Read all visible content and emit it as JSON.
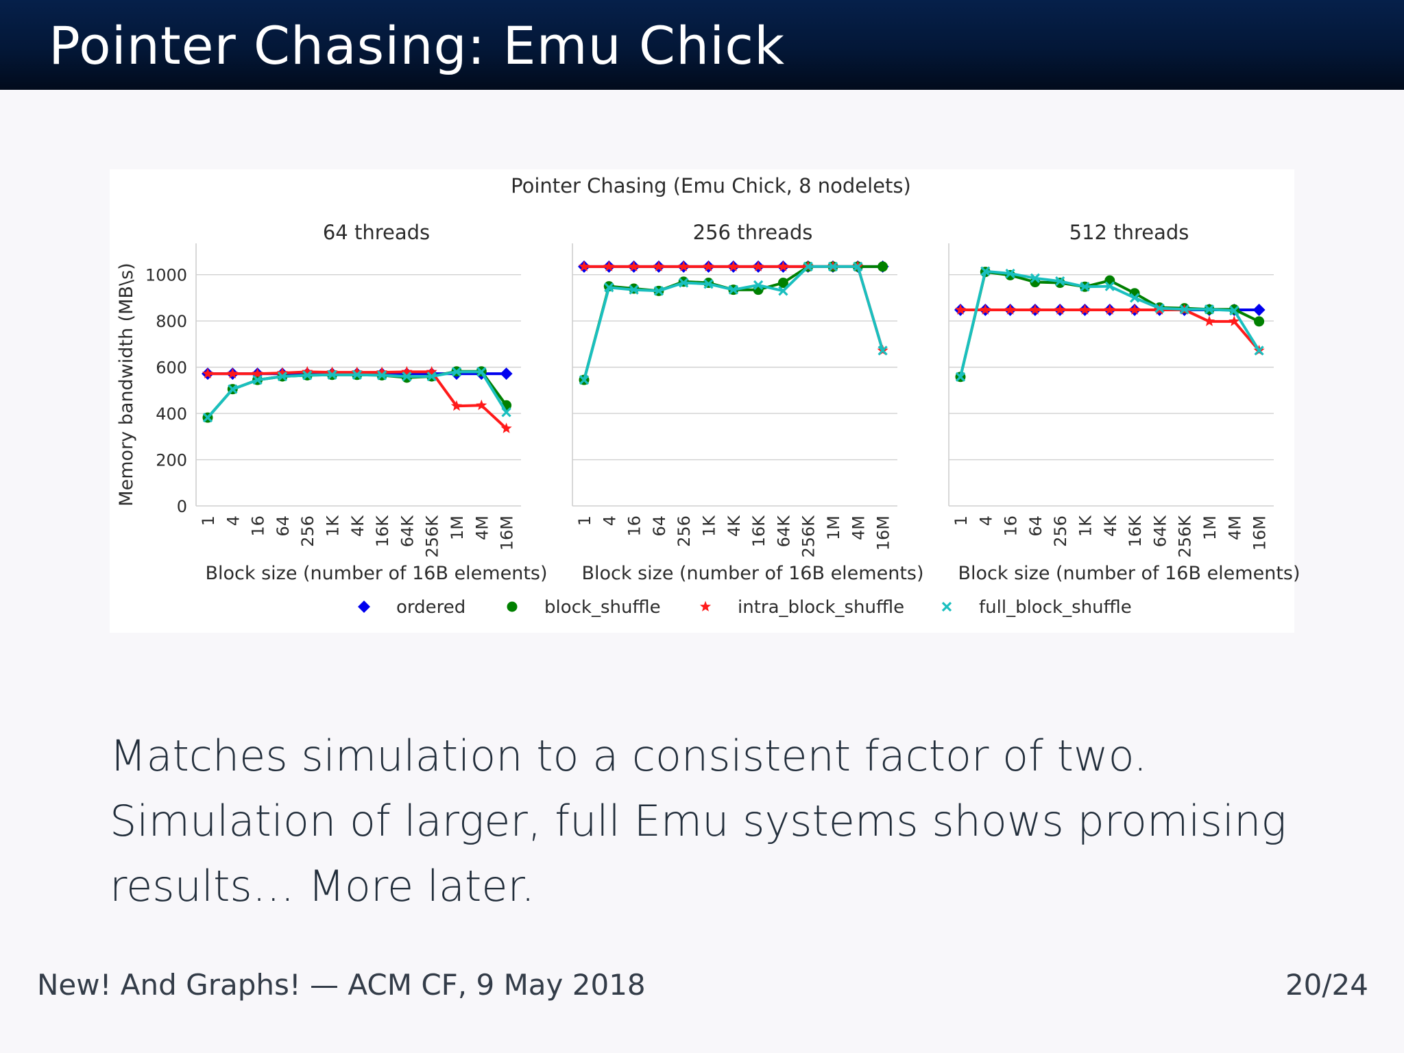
{
  "slide": {
    "title": "Pointer Chasing: Emu Chick",
    "body_lines": [
      "Matches simulation to a consistent factor of two.",
      "Simulation of larger, full Emu systems shows promising",
      "results… More later."
    ],
    "footer_left": "New! And Graphs! — ACM CF, 9 May 2018",
    "footer_right": "20/24"
  },
  "figure": {
    "suptitle": "Pointer Chasing (Emu Chick, 8 nodelets)",
    "ylabel": "Memory bandwidth (MB\\s)",
    "xlabel": "Block size (number of 16B elements)",
    "legend": [
      "ordered",
      "block_shuffle",
      "intra_block_shuffle",
      "full_block_shuffle"
    ],
    "colors": {
      "ordered": "#0000ee",
      "block_shuffle": "#008000",
      "intra_block_shuffle": "#ff1a1a",
      "full_block_shuffle": "#1abfbf",
      "grid": "#d0d0d0",
      "axis": "#cfcfcf"
    },
    "markers": {
      "ordered": "diamond",
      "block_shuffle": "circle",
      "intra_block_shuffle": "star",
      "full_block_shuffle": "x"
    }
  },
  "chart_data": [
    {
      "type": "line",
      "title": "64 threads",
      "xlabel": "Block size (number of 16B elements)",
      "ylabel": "Memory bandwidth (MB\\s)",
      "categories": [
        "1",
        "4",
        "16",
        "64",
        "256",
        "1K",
        "4K",
        "16K",
        "64K",
        "256K",
        "1M",
        "4M",
        "16M"
      ],
      "ylim": [
        0,
        1100
      ],
      "yticks": [
        0,
        200,
        400,
        600,
        800,
        1000
      ],
      "grid": true,
      "series": [
        {
          "name": "ordered",
          "values": [
            572,
            572,
            572,
            572,
            572,
            572,
            572,
            572,
            572,
            572,
            572,
            572,
            572
          ]
        },
        {
          "name": "block_shuffle",
          "values": [
            382,
            505,
            545,
            560,
            565,
            567,
            567,
            565,
            555,
            560,
            582,
            582,
            435
          ]
        },
        {
          "name": "intra_block_shuffle",
          "values": [
            572,
            572,
            572,
            575,
            580,
            578,
            578,
            578,
            580,
            580,
            432,
            435,
            335
          ]
        },
        {
          "name": "full_block_shuffle",
          "values": [
            382,
            505,
            545,
            560,
            565,
            567,
            567,
            565,
            560,
            560,
            580,
            580,
            405
          ]
        }
      ]
    },
    {
      "type": "line",
      "title": "256 threads",
      "xlabel": "Block size (number of 16B elements)",
      "ylabel": "",
      "categories": [
        "1",
        "4",
        "16",
        "64",
        "256",
        "1K",
        "4K",
        "16K",
        "64K",
        "256K",
        "1M",
        "4M",
        "16M"
      ],
      "ylim": [
        0,
        1100
      ],
      "yticks": [
        0,
        200,
        400,
        600,
        800,
        1000
      ],
      "grid": true,
      "series": [
        {
          "name": "ordered",
          "values": [
            1035,
            1035,
            1035,
            1035,
            1035,
            1035,
            1035,
            1035,
            1035,
            1035,
            1035,
            1035,
            1035
          ]
        },
        {
          "name": "block_shuffle",
          "values": [
            545,
            950,
            940,
            930,
            970,
            965,
            935,
            935,
            965,
            1035,
            1035,
            1035,
            1035
          ]
        },
        {
          "name": "intra_block_shuffle",
          "values": [
            1035,
            1035,
            1035,
            1035,
            1035,
            1035,
            1035,
            1035,
            1035,
            1035,
            1035,
            1035,
            672
          ]
        },
        {
          "name": "full_block_shuffle",
          "values": [
            545,
            945,
            935,
            930,
            965,
            960,
            935,
            955,
            930,
            1035,
            1035,
            1035,
            672
          ]
        }
      ]
    },
    {
      "type": "line",
      "title": "512 threads",
      "xlabel": "Block size (number of 16B elements)",
      "ylabel": "",
      "categories": [
        "1",
        "4",
        "16",
        "64",
        "256",
        "1K",
        "4K",
        "16K",
        "64K",
        "256K",
        "1M",
        "4M",
        "16M"
      ],
      "ylim": [
        0,
        1100
      ],
      "yticks": [
        0,
        200,
        400,
        600,
        800,
        1000
      ],
      "grid": true,
      "series": [
        {
          "name": "ordered",
          "values": [
            848,
            848,
            848,
            848,
            848,
            848,
            848,
            848,
            848,
            848,
            848,
            848,
            848
          ]
        },
        {
          "name": "block_shuffle",
          "values": [
            558,
            1012,
            998,
            968,
            965,
            948,
            975,
            920,
            858,
            855,
            850,
            850,
            798
          ]
        },
        {
          "name": "intra_block_shuffle",
          "values": [
            848,
            848,
            848,
            848,
            848,
            848,
            848,
            848,
            848,
            848,
            798,
            798,
            672
          ]
        },
        {
          "name": "full_block_shuffle",
          "values": [
            558,
            1015,
            1005,
            985,
            972,
            948,
            950,
            900,
            855,
            850,
            850,
            845,
            672
          ]
        }
      ]
    }
  ]
}
